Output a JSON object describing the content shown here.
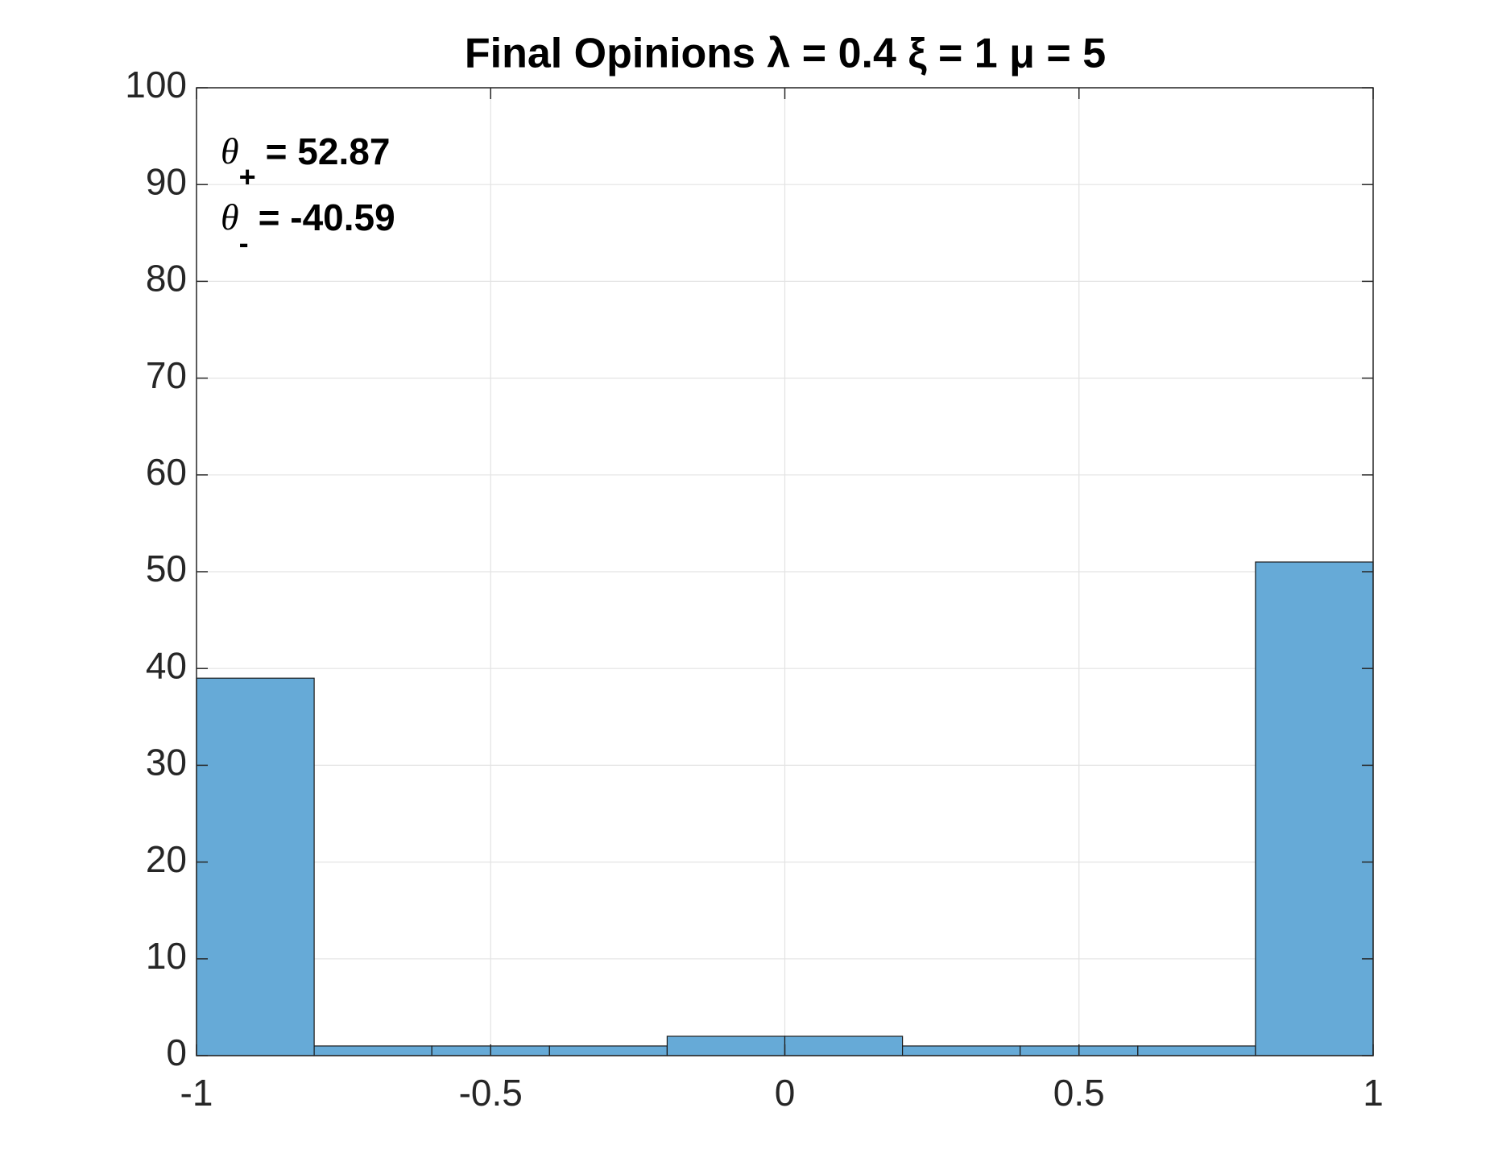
{
  "chart_data": {
    "type": "histogram",
    "title": "Final Opinions  λ = 0.4 ξ = 1 μ = 5",
    "bins": [
      -1,
      -0.8,
      -0.6,
      -0.4,
      -0.2,
      0,
      0.2,
      0.4,
      0.6,
      0.8,
      1
    ],
    "counts": [
      39,
      1,
      1,
      1,
      2,
      2,
      1,
      1,
      1,
      51
    ],
    "color": "#66aad7",
    "xlim": [
      -1,
      1
    ],
    "xticks": [
      -1,
      -0.5,
      0,
      0.5,
      1
    ],
    "ylim": [
      0,
      100
    ],
    "yticks": [
      0,
      10,
      20,
      30,
      40,
      50,
      60,
      70,
      80,
      90,
      100
    ],
    "grid": true,
    "annotations": [
      {
        "symbol": "θ",
        "subscript": "+",
        "text": "= 52.87"
      },
      {
        "symbol": "θ",
        "subscript": "-",
        "text": "= -40.59"
      }
    ]
  }
}
